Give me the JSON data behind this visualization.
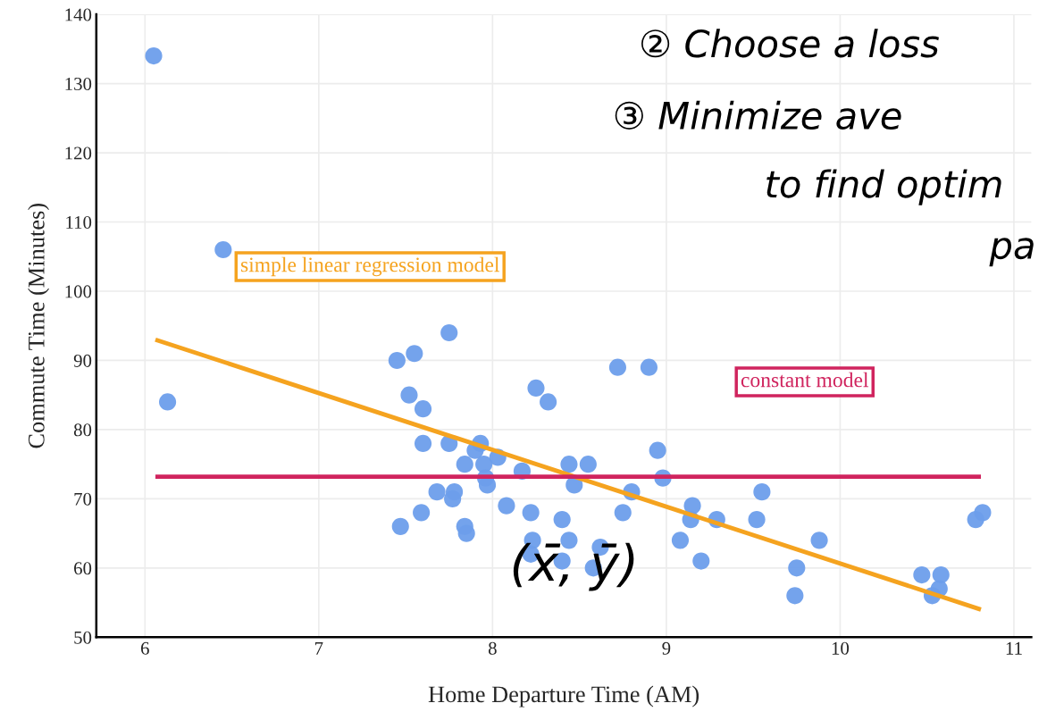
{
  "chart_data": {
    "type": "scatter",
    "xlabel": "Home Departure Time (AM)",
    "ylabel": "Commute Time (Minutes)",
    "xlim": [
      5.72,
      11.1
    ],
    "ylim": [
      50,
      140
    ],
    "xticks": [
      6,
      7,
      8,
      9,
      10,
      11
    ],
    "yticks": [
      50,
      60,
      70,
      80,
      90,
      100,
      110,
      120,
      130,
      140
    ],
    "grid": true,
    "series": [
      {
        "color": "#6d9eeb",
        "marker": "circle",
        "x": [
          6.05,
          6.13,
          6.45,
          7.45,
          7.55,
          7.75,
          7.52,
          7.6,
          7.6,
          7.75,
          7.47,
          7.59,
          7.68,
          7.78,
          7.77,
          7.84,
          7.85,
          7.93,
          7.9,
          8.03,
          7.84,
          7.95,
          7.96,
          7.97,
          8.17,
          8.08,
          8.22,
          8.44,
          8.55,
          8.47,
          8.25,
          8.32,
          8.72,
          8.9,
          8.95,
          8.98,
          8.8,
          8.75,
          8.4,
          8.23,
          8.22,
          8.44,
          8.4,
          8.62,
          8.58,
          9.15,
          9.14,
          9.08,
          9.2,
          9.29,
          9.55,
          9.52,
          9.88,
          9.75,
          9.74,
          10.47,
          10.58,
          10.57,
          10.53,
          10.82,
          10.78
        ],
        "values": [
          134,
          84,
          106,
          90,
          91,
          94,
          85,
          83,
          78,
          78,
          66,
          68,
          71,
          71,
          70,
          66,
          65,
          78,
          77,
          76,
          75,
          75,
          73,
          72,
          74,
          69,
          68,
          75,
          75,
          72,
          86,
          84,
          89,
          89,
          77,
          73,
          71,
          68,
          67,
          64,
          62,
          64,
          61,
          63,
          60,
          69,
          67,
          64,
          61,
          67,
          71,
          67,
          64,
          60,
          56,
          59,
          59,
          57,
          56,
          68,
          67
        ]
      },
      {
        "type": "line",
        "color": "#f5a31f",
        "x": [
          6.06,
          10.81
        ],
        "values": [
          93.0,
          54.0
        ]
      },
      {
        "type": "line",
        "color": "#d0245e",
        "x": [
          6.06,
          10.81
        ],
        "values": [
          73.2,
          73.2
        ]
      }
    ],
    "annotations": [
      "simple linear regression model",
      "constant model",
      {
        "text": "(x̄, ȳ)",
        "x": 8.47,
        "y": 72.7
      },
      "② Choose a loss",
      "③ Minimize ave",
      "to find optim",
      "pa"
    ]
  }
}
